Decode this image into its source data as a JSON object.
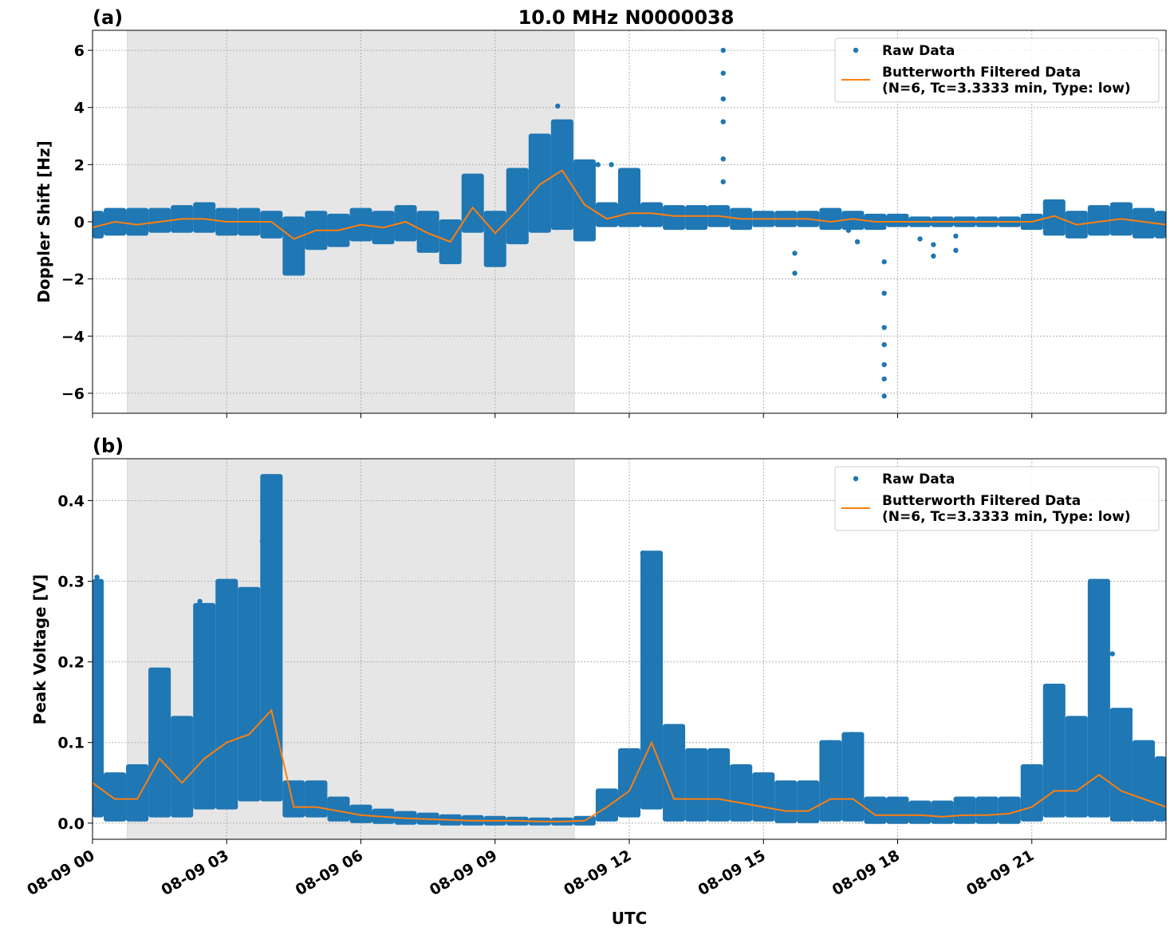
{
  "chart_data": [
    {
      "type": "scatter",
      "panel_label": "(a)",
      "title": "10.0 MHz N0000038",
      "xlabel": "",
      "ylabel": "Doppler Shift [Hz]",
      "x_unit": "hours UTC on 08-09",
      "xlim": [
        0,
        24
      ],
      "ylim": [
        -6.7,
        6.7
      ],
      "yticks": [
        -6,
        -4,
        -2,
        0,
        2,
        4,
        6
      ],
      "ytick_labels": [
        "−6",
        "−4",
        "−2",
        "0",
        "2",
        "4",
        "6"
      ],
      "xticks": [
        0,
        3,
        6,
        9,
        12,
        15,
        18,
        21
      ],
      "xtick_labels": [
        "08-09 00",
        "08-09 03",
        "08-09 06",
        "08-09 09",
        "08-09 12",
        "08-09 15",
        "08-09 18",
        "08-09 21"
      ],
      "shaded_interval": [
        0.78,
        10.77
      ],
      "grid": true,
      "legend": {
        "placement": "top-right",
        "entries": [
          "Raw Data",
          "Butterworth Filtered Data",
          "(N=6, Tc=3.3333 min, Type: low)"
        ]
      },
      "colors": {
        "raw": "#1f77b4",
        "filtered": "#ff7f0e",
        "shade": "#e6e6e6"
      },
      "t_step_hours": 0.5,
      "series": [
        {
          "name": "Butterworth Filtered Data",
          "values": [
            -0.2,
            0.0,
            -0.1,
            0.0,
            0.1,
            0.1,
            0.0,
            0.0,
            0.0,
            -0.6,
            -0.3,
            -0.3,
            -0.1,
            -0.2,
            0.0,
            -0.4,
            -0.7,
            0.5,
            -0.4,
            0.4,
            1.3,
            1.8,
            0.6,
            0.1,
            0.3,
            0.3,
            0.2,
            0.2,
            0.2,
            0.1,
            0.1,
            0.1,
            0.1,
            0.0,
            0.1,
            0.0,
            0.0,
            0.0,
            0.0,
            0.0,
            0.0,
            0.0,
            0.0,
            0.2,
            -0.1,
            0.0,
            0.1,
            0.0,
            -0.1
          ]
        },
        {
          "name": "Raw Data",
          "min": [
            -0.5,
            -0.4,
            -0.4,
            -0.3,
            -0.3,
            -0.3,
            -0.4,
            -0.4,
            -0.5,
            -1.8,
            -0.9,
            -0.8,
            -0.6,
            -0.7,
            -0.6,
            -1.0,
            -1.4,
            -0.3,
            -1.5,
            -0.7,
            -0.3,
            -0.2,
            -0.6,
            -0.1,
            -0.1,
            -0.1,
            -0.2,
            -0.2,
            -0.1,
            -0.2,
            -0.1,
            -0.1,
            -0.1,
            -0.2,
            -0.2,
            -0.2,
            -0.1,
            -0.1,
            -0.1,
            -0.1,
            -0.1,
            -0.1,
            -0.2,
            -0.4,
            -0.5,
            -0.4,
            -0.4,
            -0.5,
            -0.5
          ],
          "max": [
            0.3,
            0.4,
            0.4,
            0.4,
            0.5,
            0.6,
            0.4,
            0.4,
            0.3,
            0.1,
            0.3,
            0.2,
            0.4,
            0.3,
            0.5,
            0.3,
            0.0,
            1.6,
            0.3,
            1.8,
            3.0,
            3.5,
            2.1,
            0.6,
            1.8,
            0.6,
            0.5,
            0.5,
            0.5,
            0.4,
            0.3,
            0.3,
            0.3,
            0.4,
            0.3,
            0.2,
            0.2,
            0.1,
            0.1,
            0.1,
            0.1,
            0.1,
            0.2,
            0.7,
            0.3,
            0.5,
            0.6,
            0.4,
            0.3
          ],
          "outliers": [
            [
              14.1,
              6.0
            ],
            [
              14.1,
              5.2
            ],
            [
              14.1,
              4.3
            ],
            [
              14.1,
              3.5
            ],
            [
              14.1,
              2.2
            ],
            [
              14.1,
              1.4
            ],
            [
              17.7,
              -6.1
            ],
            [
              17.7,
              -5.5
            ],
            [
              17.7,
              -5.0
            ],
            [
              17.7,
              -4.3
            ],
            [
              17.7,
              -3.7
            ],
            [
              17.7,
              -2.5
            ],
            [
              17.7,
              -1.4
            ],
            [
              15.7,
              -1.8
            ],
            [
              15.7,
              -1.1
            ],
            [
              18.5,
              -0.6
            ],
            [
              18.8,
              -0.8
            ],
            [
              18.8,
              -1.2
            ],
            [
              19.3,
              -1.0
            ],
            [
              19.3,
              -0.5
            ],
            [
              17.1,
              -0.7
            ],
            [
              10.4,
              4.05
            ],
            [
              11.3,
              2.0
            ],
            [
              11.6,
              2.0
            ],
            [
              16.9,
              -0.3
            ]
          ]
        }
      ]
    },
    {
      "type": "scatter",
      "panel_label": "(b)",
      "title": "",
      "xlabel": "UTC",
      "ylabel": "Peak Voltage [V]",
      "x_unit": "hours UTC on 08-09",
      "xlim": [
        0,
        24
      ],
      "ylim": [
        -0.02,
        0.452
      ],
      "yticks": [
        0.0,
        0.1,
        0.2,
        0.3,
        0.4
      ],
      "ytick_labels": [
        "0.0",
        "0.1",
        "0.2",
        "0.3",
        "0.4"
      ],
      "xticks": [
        0,
        3,
        6,
        9,
        12,
        15,
        18,
        21
      ],
      "xtick_labels": [
        "08-09 00",
        "08-09 03",
        "08-09 06",
        "08-09 09",
        "08-09 12",
        "08-09 15",
        "08-09 18",
        "08-09 21"
      ],
      "shaded_interval": [
        0.78,
        10.77
      ],
      "grid": true,
      "legend": {
        "placement": "top-right",
        "entries": [
          "Raw Data",
          "Butterworth Filtered Data",
          "(N=6, Tc=3.3333 min, Type: low)"
        ]
      },
      "colors": {
        "raw": "#1f77b4",
        "filtered": "#ff7f0e",
        "shade": "#e6e6e6"
      },
      "t_step_hours": 0.5,
      "series": [
        {
          "name": "Butterworth Filtered Data",
          "values": [
            0.05,
            0.03,
            0.03,
            0.08,
            0.05,
            0.08,
            0.1,
            0.11,
            0.14,
            0.02,
            0.02,
            0.015,
            0.01,
            0.008,
            0.006,
            0.005,
            0.004,
            0.003,
            0.003,
            0.003,
            0.002,
            0.002,
            0.003,
            0.02,
            0.04,
            0.1,
            0.03,
            0.03,
            0.03,
            0.025,
            0.02,
            0.015,
            0.015,
            0.03,
            0.03,
            0.01,
            0.01,
            0.01,
            0.008,
            0.01,
            0.01,
            0.012,
            0.02,
            0.04,
            0.04,
            0.06,
            0.04,
            0.03,
            0.02
          ]
        },
        {
          "name": "Raw Data",
          "min": [
            0.01,
            0.005,
            0.005,
            0.01,
            0.01,
            0.02,
            0.02,
            0.03,
            0.03,
            0.01,
            0.01,
            0.005,
            0.003,
            0.002,
            0.001,
            0.001,
            0,
            0,
            0,
            0,
            0,
            0,
            0,
            0.005,
            0.01,
            0.02,
            0.005,
            0.005,
            0.005,
            0.005,
            0.005,
            0.003,
            0.003,
            0.005,
            0.005,
            0.002,
            0.002,
            0.002,
            0.002,
            0.002,
            0.002,
            0.002,
            0.005,
            0.01,
            0.01,
            0.01,
            0.005,
            0.005,
            0.005
          ],
          "max": [
            0.3,
            0.06,
            0.07,
            0.19,
            0.13,
            0.27,
            0.3,
            0.29,
            0.43,
            0.05,
            0.05,
            0.03,
            0.02,
            0.015,
            0.012,
            0.01,
            0.008,
            0.007,
            0.006,
            0.005,
            0.004,
            0.004,
            0.006,
            0.04,
            0.09,
            0.335,
            0.12,
            0.09,
            0.09,
            0.07,
            0.06,
            0.05,
            0.05,
            0.1,
            0.11,
            0.03,
            0.03,
            0.025,
            0.025,
            0.03,
            0.03,
            0.03,
            0.07,
            0.17,
            0.13,
            0.3,
            0.14,
            0.1,
            0.08
          ],
          "outliers": [
            [
              3.9,
              0.43
            ],
            [
              3.9,
              0.4
            ],
            [
              3.8,
              0.35
            ],
            [
              12.3,
              0.335
            ],
            [
              22.4,
              0.3
            ],
            [
              0.1,
              0.305
            ],
            [
              1.5,
              0.19
            ],
            [
              2.4,
              0.275
            ],
            [
              3.0,
              0.295
            ],
            [
              22.8,
              0.21
            ],
            [
              23.2,
              0.14
            ],
            [
              17.0,
              0.11
            ],
            [
              16.5,
              0.1
            ]
          ]
        }
      ]
    }
  ]
}
